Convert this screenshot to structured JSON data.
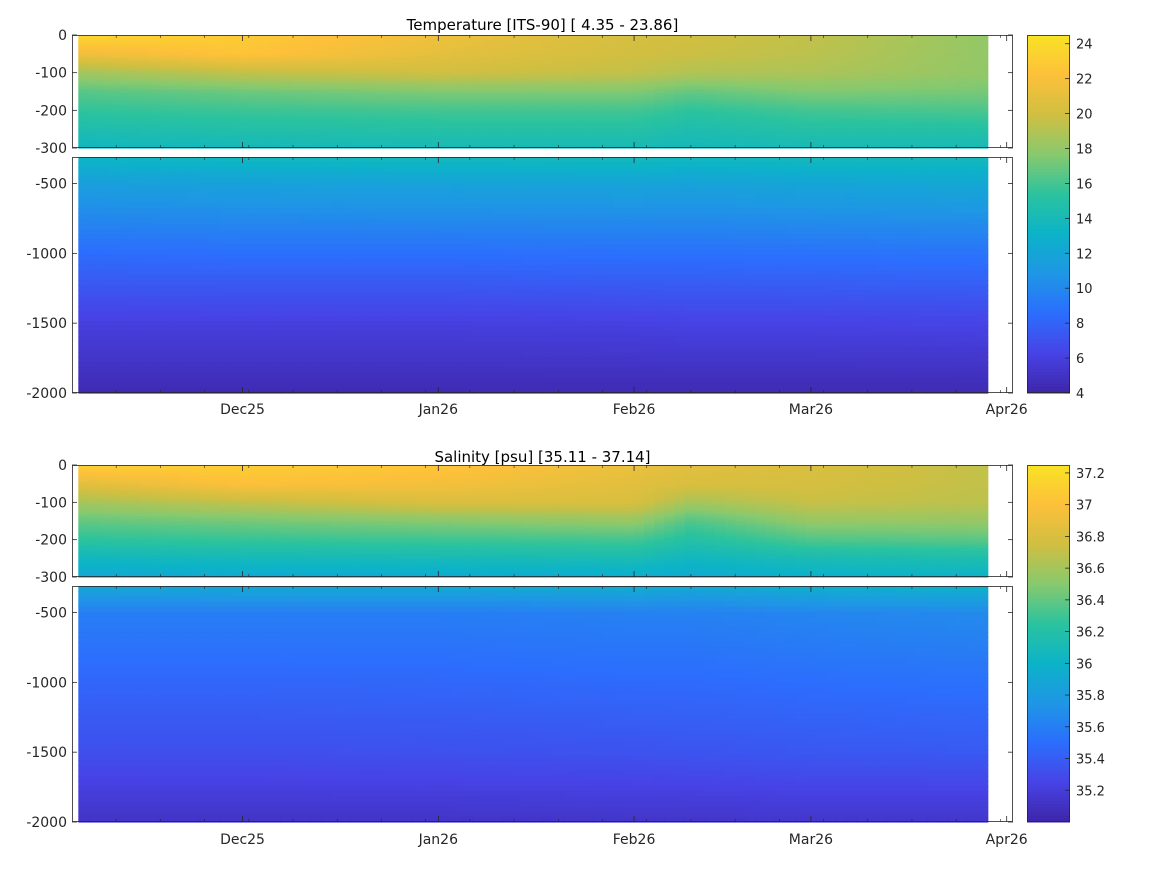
{
  "figure": {
    "x_ticks": [
      "Dec25",
      "Jan26",
      "Feb26",
      "Mar26",
      "Apr26"
    ]
  },
  "chart_data": [
    {
      "type": "heatmap",
      "title": "Temperature [ITS-90]   [ 4.35 - 23.86]",
      "variable": "temperature",
      "value_range": [
        4.35,
        23.86
      ],
      "color_limits": [
        4,
        24.5
      ],
      "colorbar_ticks": [
        "24",
        "22",
        "20",
        "18",
        "16",
        "14",
        "12",
        "10",
        "8",
        "6",
        "4"
      ],
      "colormap": [
        "#3e26a8",
        "#4743e6",
        "#2c6efd",
        "#1f96e5",
        "#0cb3c8",
        "#2bc39e",
        "#88c96e",
        "#d0bf41",
        "#fdc03a",
        "#f9e225"
      ],
      "x_range": [
        "2025-11-04",
        "2026-04-02"
      ],
      "data_x_range": [
        "2025-11-05",
        "2026-03-29"
      ],
      "upper_panel": {
        "ylim": [
          -300,
          0
        ],
        "yticks": [
          "0",
          "-100",
          "-200",
          "-300"
        ]
      },
      "lower_panel": {
        "ylim": [
          -2000,
          -310
        ],
        "yticks": [
          "-500",
          "-1000",
          "-1500",
          "-2000"
        ]
      },
      "x_ticks": [
        "Dec25",
        "Jan26",
        "Feb26",
        "Mar26",
        "Apr26"
      ],
      "profiles": {
        "dates": [
          "2025-11-05",
          "2025-12-01",
          "2026-01-01",
          "2026-02-01",
          "2026-02-10",
          "2026-03-01",
          "2026-03-29"
        ],
        "depth": [
          0,
          50,
          100,
          150,
          200,
          250,
          300,
          500,
          1000,
          1500,
          2000
        ],
        "values": [
          [
            23.8,
            21.5,
            18.5,
            16.5,
            15.5,
            14.5,
            13.5,
            11.5,
            8.5,
            6.0,
            4.4
          ],
          [
            23.0,
            22.5,
            19.5,
            17.0,
            15.8,
            14.8,
            13.8,
            11.7,
            8.6,
            6.0,
            4.4
          ],
          [
            21.5,
            21.0,
            20.0,
            17.5,
            16.0,
            15.0,
            14.0,
            11.8,
            8.6,
            6.0,
            4.4
          ],
          [
            20.2,
            20.0,
            19.5,
            17.5,
            16.0,
            15.0,
            14.0,
            11.9,
            8.7,
            6.1,
            4.4
          ],
          [
            20.0,
            19.8,
            19.0,
            16.8,
            15.4,
            14.5,
            13.8,
            11.8,
            8.7,
            6.2,
            4.4
          ],
          [
            19.5,
            19.3,
            18.8,
            17.5,
            16.0,
            15.0,
            14.0,
            12.0,
            8.8,
            6.2,
            4.4
          ],
          [
            18.0,
            18.0,
            18.0,
            17.3,
            16.2,
            15.0,
            14.0,
            12.2,
            8.9,
            6.3,
            4.4
          ]
        ]
      }
    },
    {
      "type": "heatmap",
      "title": "Salinity [psu]   [35.11 - 37.14]",
      "variable": "salinity",
      "value_range": [
        35.11,
        37.14
      ],
      "color_limits": [
        35.0,
        37.25
      ],
      "colorbar_ticks": [
        "37.2",
        "37",
        "36.8",
        "36.6",
        "36.4",
        "36.2",
        "36",
        "35.8",
        "35.6",
        "35.4",
        "35.2"
      ],
      "colormap": [
        "#3e26a8",
        "#4743e6",
        "#2c6efd",
        "#1f96e5",
        "#0cb3c8",
        "#2bc39e",
        "#88c96e",
        "#d0bf41",
        "#fdc03a",
        "#f9e225"
      ],
      "x_range": [
        "2025-11-04",
        "2026-04-02"
      ],
      "data_x_range": [
        "2025-11-05",
        "2026-03-29"
      ],
      "upper_panel": {
        "ylim": [
          -300,
          0
        ],
        "yticks": [
          "0",
          "-100",
          "-200",
          "-300"
        ]
      },
      "lower_panel": {
        "ylim": [
          -2000,
          -310
        ],
        "yticks": [
          "-500",
          "-1000",
          "-1500",
          "-2000"
        ]
      },
      "x_ticks": [
        "Dec25",
        "Jan26",
        "Feb26",
        "Mar26",
        "Apr26"
      ],
      "profiles": {
        "dates": [
          "2025-11-05",
          "2025-12-01",
          "2026-01-01",
          "2026-02-01",
          "2026-02-10",
          "2026-03-01",
          "2026-03-29"
        ],
        "depth": [
          0,
          50,
          100,
          150,
          200,
          250,
          300,
          500,
          1000,
          1500,
          2000
        ],
        "values": [
          [
            37.12,
            36.85,
            36.6,
            36.4,
            36.25,
            36.05,
            35.9,
            35.6,
            35.45,
            35.32,
            35.12
          ],
          [
            37.1,
            37.0,
            36.7,
            36.45,
            36.28,
            36.08,
            35.92,
            35.6,
            35.45,
            35.32,
            35.12
          ],
          [
            37.05,
            36.95,
            36.8,
            36.5,
            36.3,
            36.1,
            35.92,
            35.6,
            35.46,
            35.33,
            35.12
          ],
          [
            36.9,
            36.85,
            36.8,
            36.55,
            36.32,
            36.12,
            35.95,
            35.62,
            35.48,
            35.34,
            35.13
          ],
          [
            36.85,
            36.8,
            36.6,
            36.35,
            36.2,
            36.05,
            35.92,
            35.62,
            35.48,
            35.35,
            35.13
          ],
          [
            36.8,
            36.78,
            36.72,
            36.55,
            36.35,
            36.12,
            35.98,
            35.65,
            35.5,
            35.37,
            35.14
          ],
          [
            36.7,
            36.7,
            36.68,
            36.55,
            36.38,
            36.15,
            36.0,
            35.68,
            35.52,
            35.38,
            35.14
          ]
        ]
      }
    }
  ]
}
